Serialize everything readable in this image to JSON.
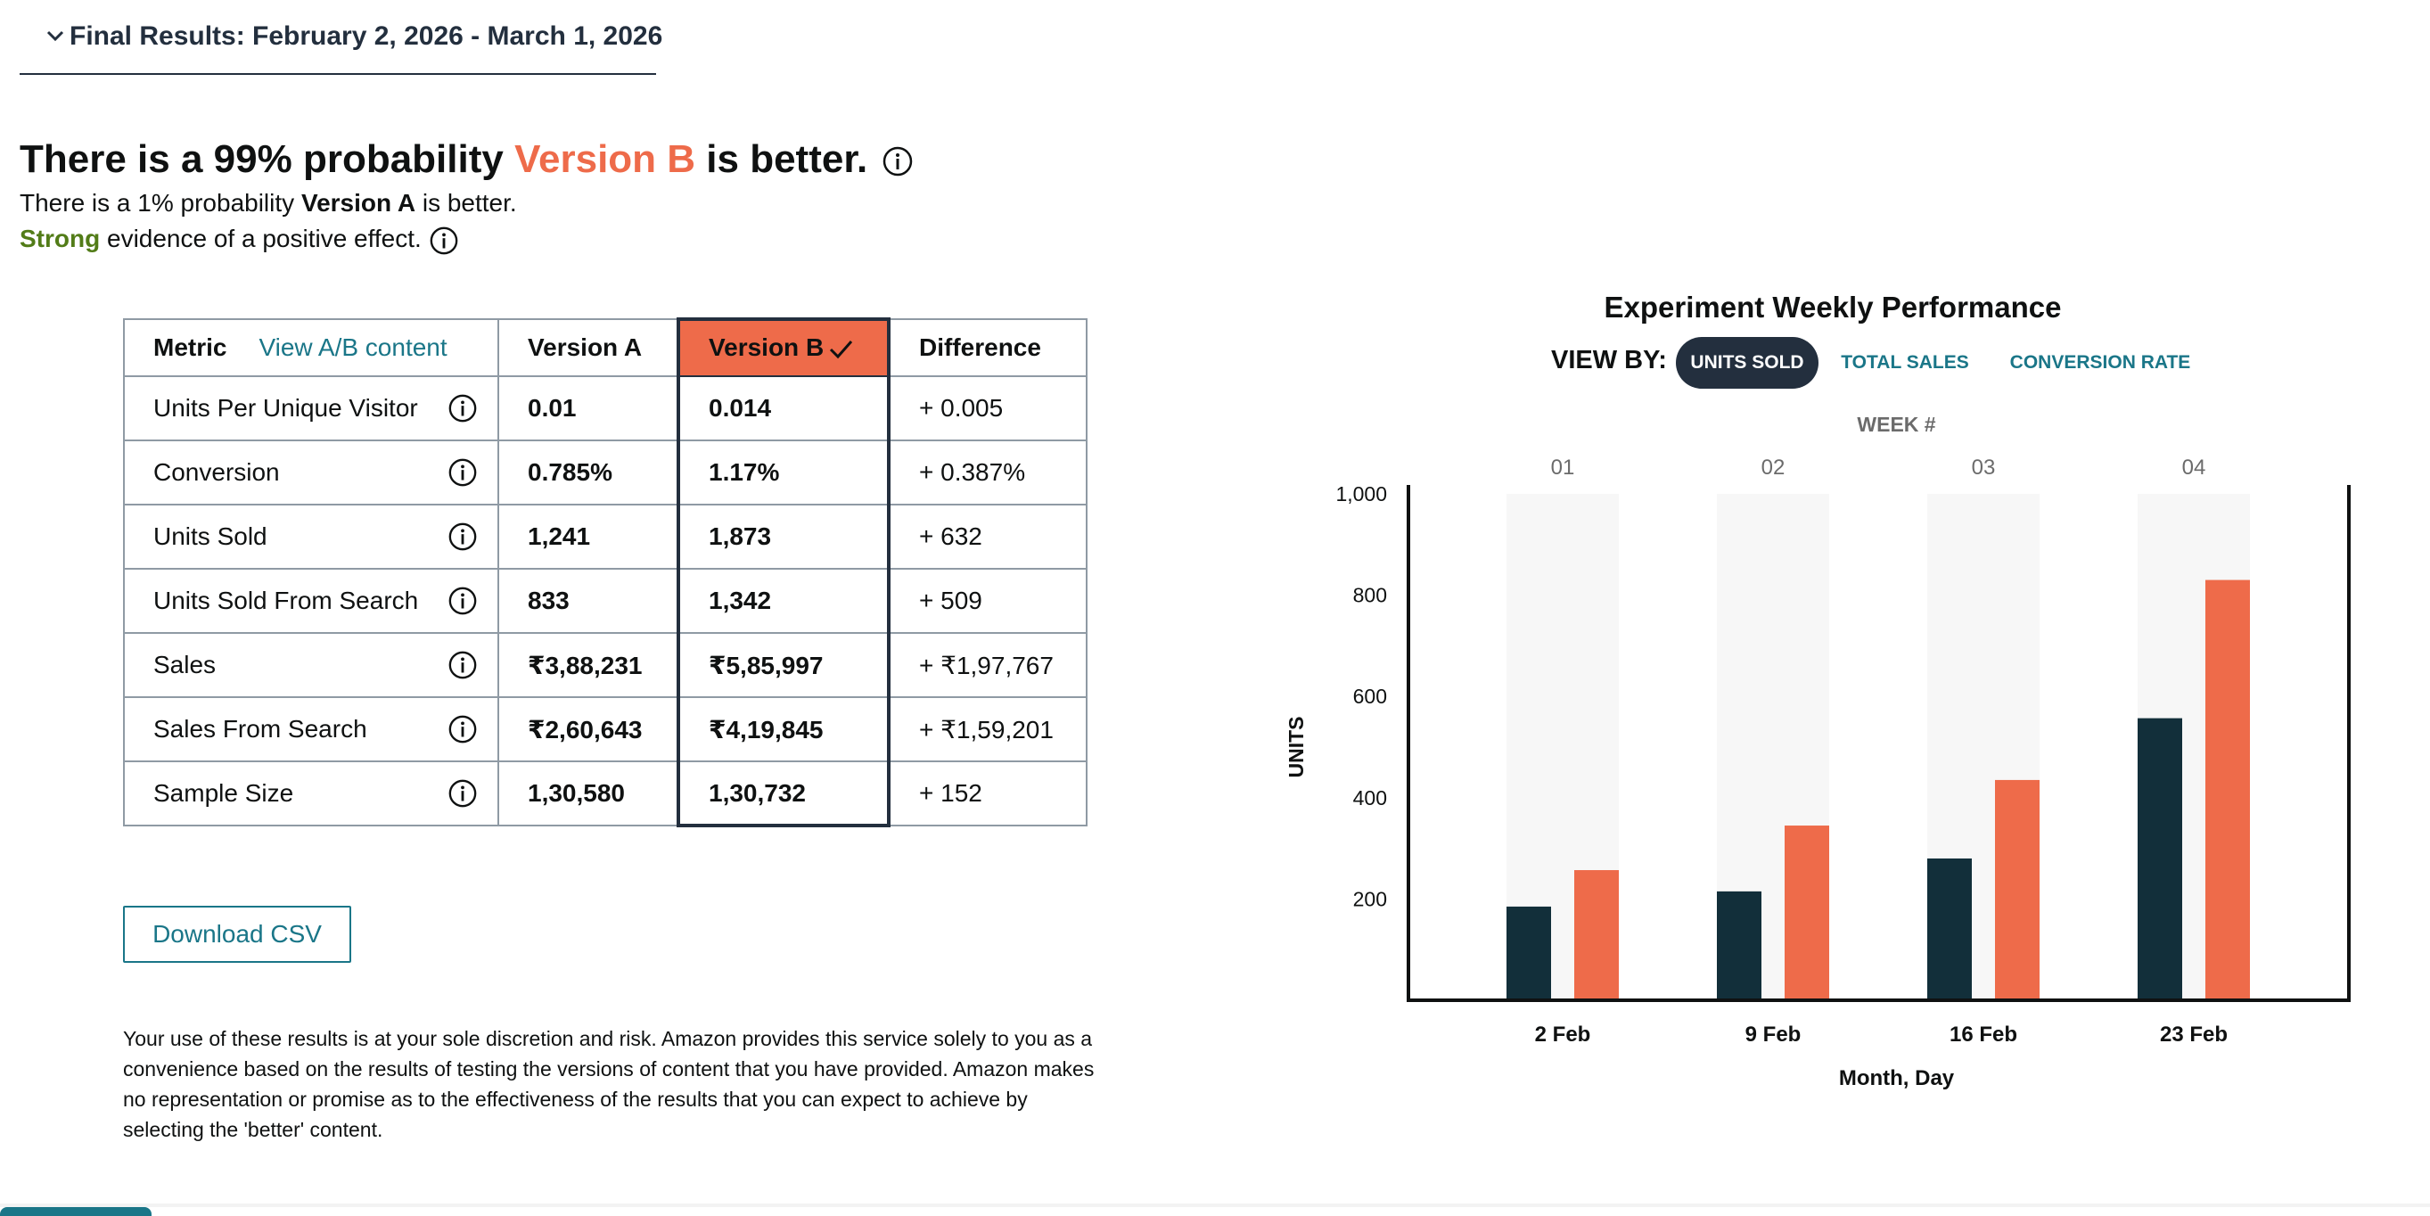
{
  "section": {
    "title": "Final Results: February 2, 2026 - March 1, 2026"
  },
  "headline": {
    "prefix": "There is a 99% probability ",
    "winner": "Version B",
    "suffix": " is better."
  },
  "subline1": {
    "prefix": "There is a 1% probability ",
    "loser": "Version A",
    "suffix": " is better."
  },
  "subline2": {
    "strength": "Strong",
    "suffix": " evidence of a positive effect."
  },
  "table": {
    "headers": {
      "metric": "Metric",
      "view_link": "View A/B content",
      "a": "Version A",
      "b": "Version B",
      "diff": "Difference"
    },
    "rows": [
      {
        "metric": "Units Per Unique Visitor",
        "a": "0.01",
        "b": "0.014",
        "diff": "+ 0.005"
      },
      {
        "metric": "Conversion",
        "a": "0.785%",
        "b": "1.17%",
        "diff": "+ 0.387%"
      },
      {
        "metric": "Units Sold",
        "a": "1,241",
        "b": "1,873",
        "diff": "+ 632"
      },
      {
        "metric": "Units Sold From Search",
        "a": "833",
        "b": "1,342",
        "diff": "+ 509"
      },
      {
        "metric": "Sales",
        "a": "₹3,88,231",
        "b": "₹5,85,997",
        "diff": "+ ₹1,97,767"
      },
      {
        "metric": "Sales From Search",
        "a": "₹2,60,643",
        "b": "₹4,19,845",
        "diff": "+ ₹1,59,201"
      },
      {
        "metric": "Sample Size",
        "a": "1,30,580",
        "b": "1,30,732",
        "diff": "+ 152"
      }
    ]
  },
  "download": {
    "label": "Download CSV"
  },
  "disclaimer": "Your use of these results is at your sole discretion and risk. Amazon provides this service solely to you as a convenience based on the results of testing the versions of content that you have provided. Amazon makes no representation or promise as to the effectiveness of the results that you can expect to achieve by selecting the 'better' content.",
  "chart": {
    "title": "Experiment Weekly Performance",
    "view_by_label": "VIEW BY:",
    "options": [
      "UNITS SOLD",
      "TOTAL SALES",
      "CONVERSION RATE"
    ],
    "selected": "UNITS SOLD"
  },
  "colors": {
    "version_a": "#122f3a",
    "version_b": "#ee6b4a",
    "link": "#1a7688",
    "highlight_band": "#f7f7f7"
  },
  "chart_data": {
    "type": "bar",
    "top_axis_label": "WEEK #",
    "weeks": [
      "01",
      "02",
      "03",
      "04"
    ],
    "categories": [
      "2 Feb",
      "9 Feb",
      "16 Feb",
      "23 Feb"
    ],
    "xlabel": "Month, Day",
    "ylabel": "UNITS",
    "ylim": [
      0,
      1000
    ],
    "yticks": [
      "200",
      "400",
      "600",
      "800",
      "1,000"
    ],
    "ytick_values": [
      200,
      400,
      600,
      800,
      1000
    ],
    "series": [
      {
        "values": [
          185,
          215,
          280,
          557
        ]
      },
      {
        "values": [
          257,
          345,
          435,
          830
        ]
      }
    ]
  }
}
